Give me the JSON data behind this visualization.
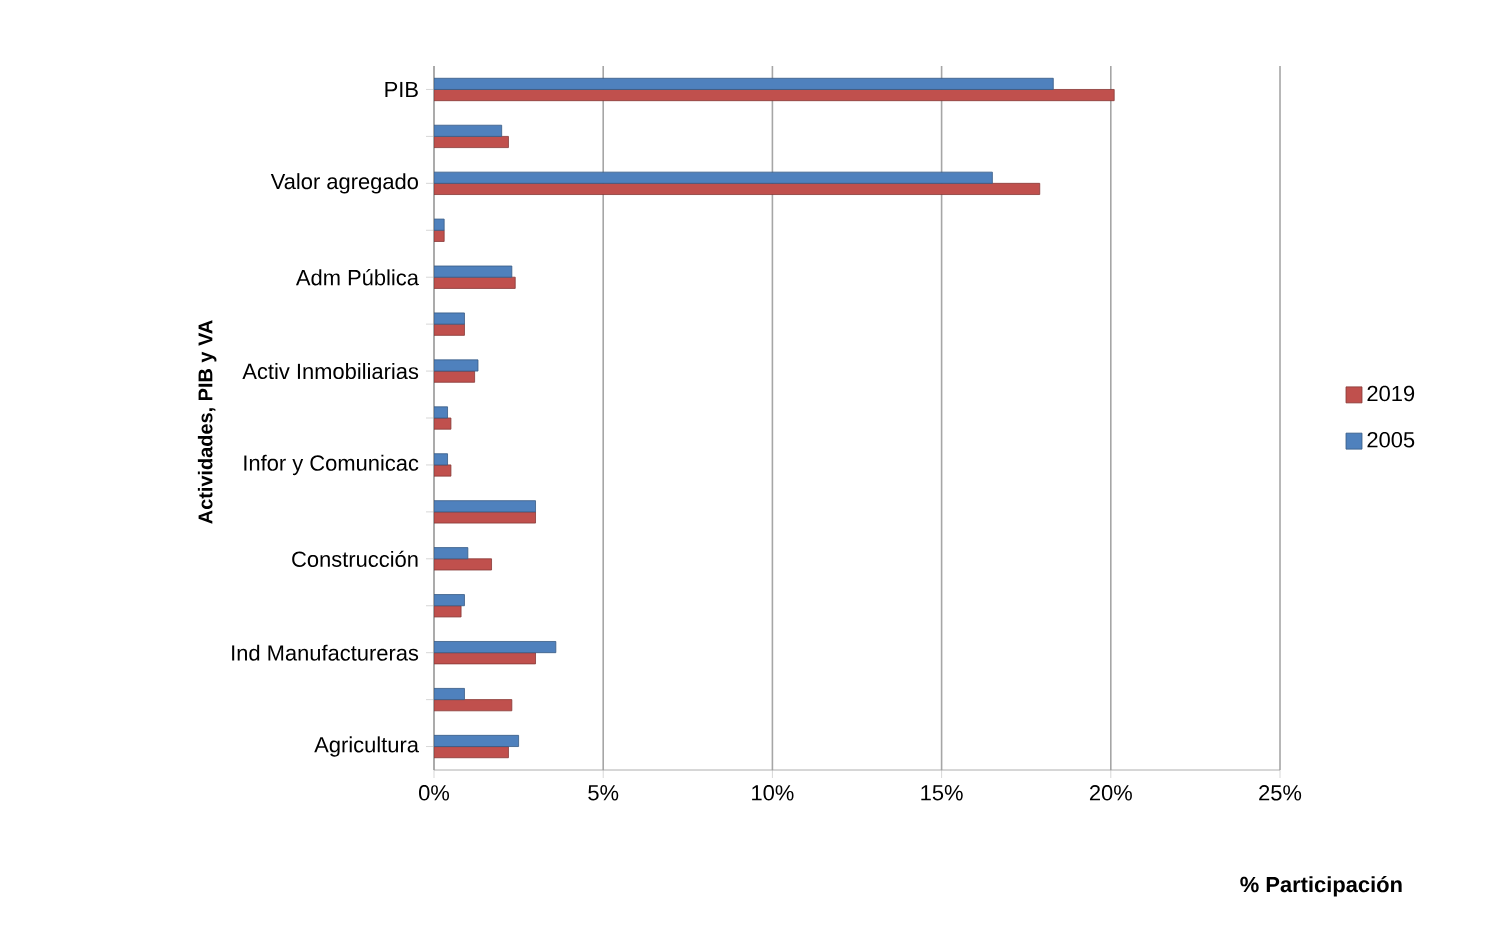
{
  "chart_data": {
    "type": "bar",
    "orientation": "horizontal",
    "xlabel": "% Participación",
    "ylabel": "Actividades, PIB y VA",
    "categories": [
      "PIB",
      null,
      "Valor agregado",
      null,
      "Adm Pública",
      null,
      "Activ Inmobiliarias",
      null,
      "Infor y Comunicac",
      null,
      "Construcción",
      null,
      "Ind Manufactureras",
      null,
      "Agricultura"
    ],
    "series": [
      {
        "name": "2019",
        "color": "#c0504d",
        "values": [
          20.1,
          2.2,
          17.9,
          0.3,
          2.4,
          0.9,
          1.2,
          0.5,
          0.5,
          3.0,
          1.7,
          0.8,
          3.0,
          2.3,
          2.2
        ]
      },
      {
        "name": "2005",
        "color": "#4f81bd",
        "values": [
          18.3,
          2.0,
          16.5,
          0.3,
          2.3,
          0.9,
          1.3,
          0.4,
          0.4,
          3.0,
          1.0,
          0.9,
          3.6,
          0.9,
          2.5
        ]
      }
    ],
    "xlim": [
      0,
      25
    ],
    "xticks": [
      {
        "value": 0,
        "label": "0%"
      },
      {
        "value": 5,
        "label": "5%"
      },
      {
        "value": 10,
        "label": "10%"
      },
      {
        "value": 15,
        "label": "15%"
      },
      {
        "value": 20,
        "label": "20%"
      },
      {
        "value": 25,
        "label": "25%"
      }
    ],
    "grid": "x",
    "legend": "right"
  }
}
